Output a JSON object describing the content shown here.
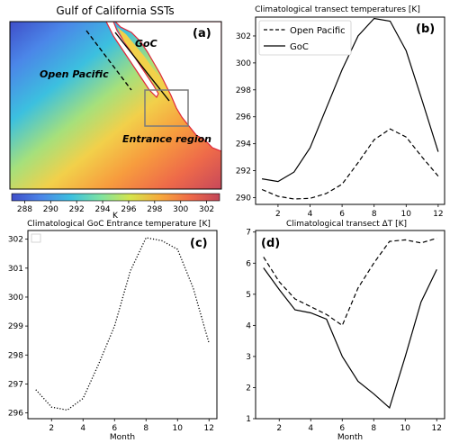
{
  "chart_data": [
    {
      "panel": "(a)",
      "type": "heatmap",
      "title": "Gulf of California SSTs",
      "annotations": [
        "GoC",
        "Open Pacific",
        "Entrance region"
      ],
      "colorbar": {
        "label": "K",
        "ticks": [
          288,
          290,
          292,
          294,
          296,
          298,
          300,
          302
        ],
        "range": [
          287,
          303
        ],
        "colors": [
          "#3f4ec9",
          "#4b86e8",
          "#3cc0df",
          "#7ee3a1",
          "#d6e44c",
          "#f7a93c",
          "#ef6a48",
          "#c24558"
        ]
      }
    },
    {
      "panel": "(b)",
      "type": "line",
      "title": "Climatological transect temperatures [K]",
      "xlabel": "",
      "ylabel": "",
      "xlim": [
        0.6,
        12.4
      ],
      "ylim": [
        289.5,
        303.4
      ],
      "xticks": [
        2,
        4,
        6,
        8,
        10,
        12
      ],
      "yticks": [
        290,
        292,
        294,
        296,
        298,
        300,
        302
      ],
      "legend": "top-left",
      "x": [
        1,
        2,
        3,
        4,
        5,
        6,
        7,
        8,
        9,
        10,
        11,
        12
      ],
      "series": [
        {
          "name": "Open Pacific",
          "style": "dashed",
          "values": [
            290.6,
            290.1,
            289.9,
            289.95,
            290.3,
            291.0,
            292.6,
            294.3,
            295.1,
            294.5,
            293.0,
            291.6
          ]
        },
        {
          "name": "GoC",
          "style": "solid",
          "values": [
            291.4,
            291.2,
            291.9,
            293.7,
            296.6,
            299.5,
            302.0,
            303.3,
            303.1,
            300.9,
            297.2,
            293.4
          ]
        }
      ]
    },
    {
      "panel": "(c)",
      "type": "line",
      "title": "Climatological GoC Entrance temperature [K]",
      "xlabel": "Month",
      "ylabel": "",
      "xlim": [
        0.5,
        12.5
      ],
      "ylim": [
        295.8,
        302.3
      ],
      "xticks": [
        2,
        4,
        6,
        8,
        10,
        12
      ],
      "yticks": [
        296,
        297,
        298,
        299,
        300,
        301,
        302
      ],
      "legend": "top-left",
      "x": [
        1,
        2,
        3,
        4,
        5,
        6,
        7,
        8,
        9,
        10,
        11,
        12
      ],
      "series": [
        {
          "style": "dotted",
          "values": [
            296.8,
            296.2,
            296.1,
            296.5,
            297.7,
            299.0,
            300.9,
            302.05,
            301.95,
            301.65,
            300.3,
            298.4
          ]
        }
      ]
    },
    {
      "panel": "(d)",
      "type": "line",
      "title": "Climatological transect ΔT [K]",
      "xlabel": "Month",
      "ylabel": "",
      "xlim": [
        0.5,
        12.5
      ],
      "ylim": [
        1.0,
        7.05
      ],
      "xticks": [
        2,
        4,
        6,
        8,
        10,
        12
      ],
      "yticks": [
        1,
        2,
        3,
        4,
        5,
        6,
        7
      ],
      "x": [
        1,
        2,
        3,
        4,
        5,
        6,
        7,
        8,
        9,
        10,
        11,
        12
      ],
      "series": [
        {
          "style": "dashed",
          "values": [
            6.2,
            5.4,
            4.85,
            4.6,
            4.35,
            4.0,
            5.2,
            6.0,
            6.7,
            6.75,
            6.65,
            6.8
          ]
        },
        {
          "style": "solid",
          "values": [
            5.85,
            5.15,
            4.5,
            4.4,
            4.2,
            3.0,
            2.2,
            1.8,
            1.35,
            3.0,
            4.75,
            5.8
          ]
        }
      ]
    }
  ]
}
